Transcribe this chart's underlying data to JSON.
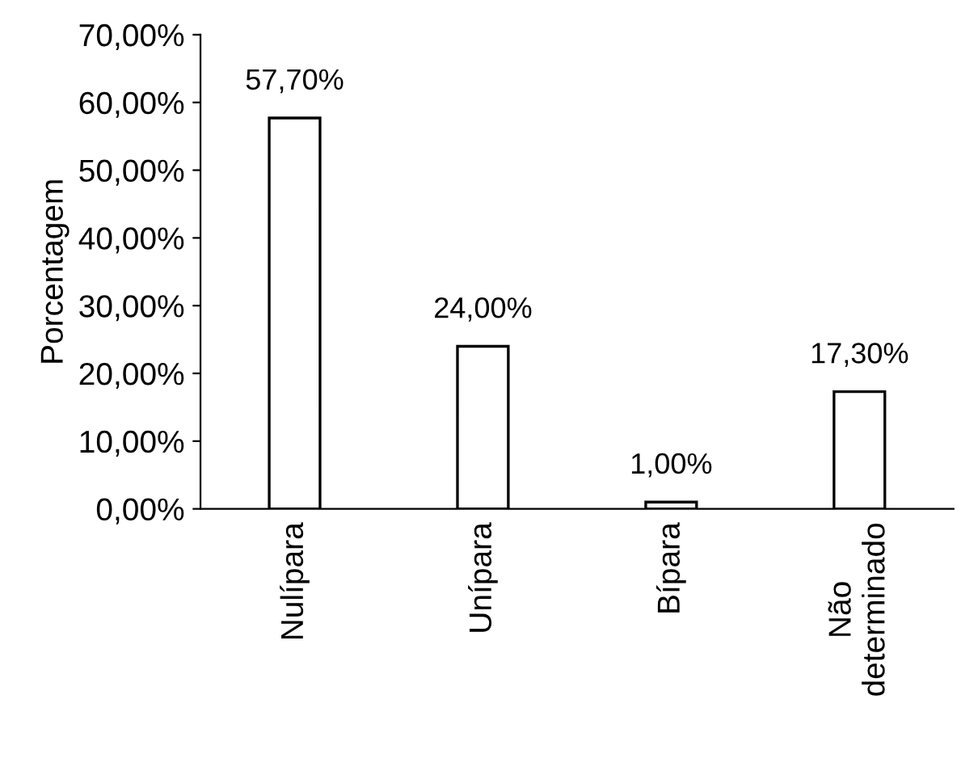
{
  "chart_data": {
    "type": "bar",
    "ylabel": "Porcentagem",
    "categories": [
      "Nulípara",
      "Unípara",
      "Bípara",
      "Não\ndeterminado"
    ],
    "values": [
      57.7,
      24.0,
      1.0,
      17.3
    ],
    "value_labels": [
      "57,70%",
      "24,00%",
      "1,00%",
      "17,30%"
    ],
    "color": "#ffffff",
    "ylim": [
      0,
      70
    ],
    "yticks": [
      {
        "value": 0,
        "label": "0,00%"
      },
      {
        "value": 10,
        "label": "10,00%"
      },
      {
        "value": 20,
        "label": "20,00%"
      },
      {
        "value": 30,
        "label": "30,00%"
      },
      {
        "value": 40,
        "label": "40,00%"
      },
      {
        "value": 50,
        "label": "50,00%"
      },
      {
        "value": 60,
        "label": "60,00%"
      },
      {
        "value": 70,
        "label": "70,00%"
      }
    ],
    "grid": false
  }
}
